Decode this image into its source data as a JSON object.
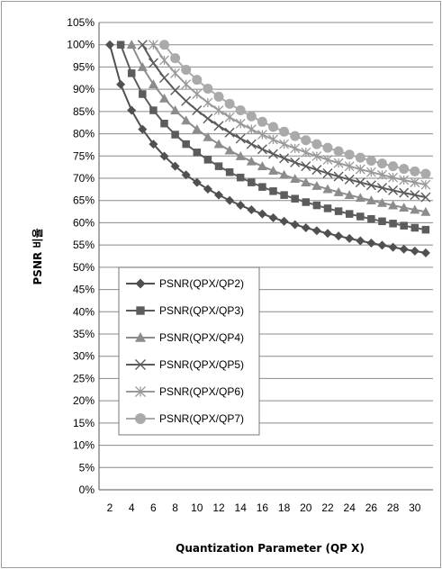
{
  "chart_data": {
    "type": "line",
    "title": "",
    "xlabel": "Quantization Parameter (QP X)",
    "ylabel": "PSNR 비율",
    "xlim": [
      2,
      31
    ],
    "ylim": [
      0,
      105
    ],
    "x_ticks": [
      "2",
      "4",
      "6",
      "8",
      "10",
      "12",
      "14",
      "16",
      "18",
      "20",
      "22",
      "24",
      "26",
      "28",
      "30"
    ],
    "y_ticks": [
      "0%",
      "5%",
      "10%",
      "15%",
      "20%",
      "25%",
      "30%",
      "35%",
      "40%",
      "45%",
      "50%",
      "55%",
      "60%",
      "65%",
      "70%",
      "75%",
      "80%",
      "85%",
      "90%",
      "95%",
      "100%",
      "105%"
    ],
    "grid": "horizontal",
    "legend_position": "center-left",
    "series": [
      {
        "name": "PSNR(QPX/QP2)",
        "marker": "diamond",
        "color": "#505050",
        "ref_qp": 2
      },
      {
        "name": "PSNR(QPX/QP3)",
        "marker": "square",
        "color": "#5c5c5c",
        "ref_qp": 3
      },
      {
        "name": "PSNR(QPX/QP4)",
        "marker": "triangle",
        "color": "#8c8c8c",
        "ref_qp": 4
      },
      {
        "name": "PSNR(QPX/QP5)",
        "marker": "x",
        "color": "#5a5a5a",
        "ref_qp": 5
      },
      {
        "name": "PSNR(QPX/QP6)",
        "marker": "star",
        "color": "#9a9a9a",
        "ref_qp": 6
      },
      {
        "name": "PSNR(QPX/QP7)",
        "marker": "circle",
        "color": "#aaaaaa",
        "ref_qp": 7
      }
    ]
  }
}
